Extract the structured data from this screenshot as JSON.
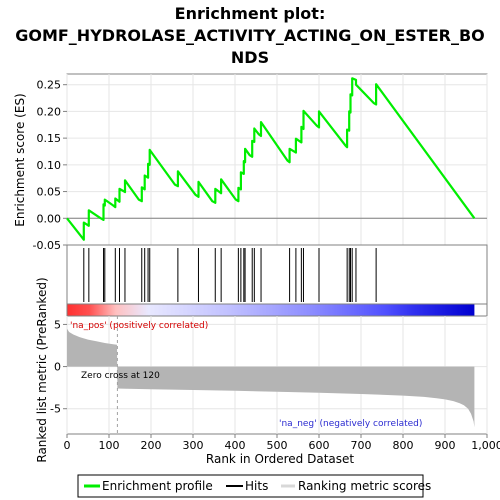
{
  "title_line1": "Enrichment plot:",
  "title_line2": "GOMF_HYDROLASE_ACTIVITY_ACTING_ON_ESTER_BO",
  "title_line3": "NDS",
  "legend": {
    "profile": "Enrichment profile",
    "hits": "Hits",
    "ranking": "Ranking metric scores"
  },
  "colors": {
    "profile": "#00ee00",
    "hits": "#000000",
    "ranking": "#b4b4b4",
    "positive": "#ff0000",
    "negative": "#0000ff"
  },
  "annotations": {
    "pos": "'na_pos' (positively correlated)",
    "neg": "'na_neg' (negatively correlated)",
    "zero_cross": "Zero cross at 120"
  },
  "chart_data": {
    "type": "line",
    "title": "Enrichment plot: GOMF_HYDROLASE_ACTIVITY_ACTING_ON_ESTER_BONDS",
    "xlabel": "Rank in Ordered Dataset",
    "ylabel_top": "Enrichment score (ES)",
    "ylabel_bottom": "Ranked list metric (PreRanked)",
    "xlim": [
      0,
      1000
    ],
    "ylim_top": [
      -0.05,
      0.27
    ],
    "ylim_bottom": [
      -8,
      6
    ],
    "x_ticks": [
      0,
      100,
      200,
      300,
      400,
      500,
      600,
      700,
      800,
      900,
      1000
    ],
    "x_tick_labels": [
      "0",
      "100",
      "200",
      "300",
      "400",
      "500",
      "600",
      "700",
      "800",
      "900",
      "1,000"
    ],
    "y_ticks_top": [
      -0.05,
      0.0,
      0.05,
      0.1,
      0.15,
      0.2,
      0.25
    ],
    "y_tick_labels_top": [
      "-0.05",
      "0.00",
      "0.05",
      "0.10",
      "0.15",
      "0.20",
      "0.25"
    ],
    "y_ticks_bottom": [
      5,
      0,
      -5
    ],
    "y_tick_labels_bottom": [
      "5",
      "0",
      "-5"
    ],
    "dataset_size": 970,
    "zero_cross": 120,
    "hits": [
      40,
      52,
      87,
      90,
      115,
      125,
      138,
      178,
      185,
      193,
      197,
      264,
      313,
      353,
      367,
      408,
      414,
      421,
      424,
      441,
      446,
      462,
      530,
      545,
      558,
      563,
      600,
      667,
      672,
      675,
      679,
      688,
      736
    ],
    "es_profile": {
      "x": [
        0,
        40,
        40,
        52,
        52,
        78,
        87,
        87,
        90,
        90,
        108,
        115,
        115,
        125,
        125,
        134,
        138,
        138,
        171,
        178,
        178,
        185,
        185,
        189,
        193,
        193,
        197,
        197,
        257,
        264,
        264,
        306,
        313,
        313,
        346,
        353,
        353,
        362,
        367,
        367,
        402,
        408,
        408,
        414,
        414,
        421,
        421,
        424,
        424,
        435,
        441,
        441,
        446,
        446,
        457,
        462,
        462,
        525,
        530,
        530,
        545,
        545,
        558,
        558,
        563,
        563,
        595,
        600,
        600,
        663,
        667,
        667,
        672,
        672,
        675,
        675,
        679,
        679,
        688,
        688,
        730,
        736,
        736,
        970
      ],
      "y": [
        0.0,
        -0.04,
        -0.008,
        -0.014,
        0.015,
        0.001,
        -0.003,
        0.026,
        0.024,
        0.035,
        0.025,
        0.021,
        0.037,
        0.031,
        0.055,
        0.051,
        0.049,
        0.071,
        0.035,
        0.032,
        0.058,
        0.054,
        0.08,
        0.078,
        0.076,
        0.102,
        0.1,
        0.128,
        0.063,
        0.06,
        0.088,
        0.044,
        0.04,
        0.068,
        0.032,
        0.029,
        0.055,
        0.05,
        0.047,
        0.073,
        0.035,
        0.032,
        0.057,
        0.054,
        0.086,
        0.083,
        0.107,
        0.105,
        0.13,
        0.118,
        0.115,
        0.145,
        0.143,
        0.168,
        0.157,
        0.154,
        0.18,
        0.108,
        0.105,
        0.13,
        0.123,
        0.149,
        0.142,
        0.171,
        0.167,
        0.201,
        0.173,
        0.17,
        0.2,
        0.136,
        0.133,
        0.166,
        0.164,
        0.2,
        0.198,
        0.232,
        0.23,
        0.262,
        0.259,
        0.25,
        0.216,
        0.213,
        0.251,
        0.0
      ]
    },
    "ranked_metric": {
      "x": [
        0,
        5,
        15,
        30,
        50,
        70,
        90,
        110,
        119,
        120,
        140,
        200,
        300,
        400,
        500,
        600,
        700,
        800,
        850,
        880,
        900,
        920,
        935,
        945,
        955,
        962,
        968,
        970
      ],
      "y": [
        4.5,
        4.1,
        3.8,
        3.5,
        3.2,
        3.0,
        2.8,
        2.65,
        2.6,
        -2.6,
        -2.62,
        -2.68,
        -2.78,
        -2.88,
        -2.98,
        -3.1,
        -3.25,
        -3.45,
        -3.6,
        -3.75,
        -3.9,
        -4.1,
        -4.35,
        -4.6,
        -5.0,
        -5.6,
        -6.5,
        -7.2
      ]
    }
  }
}
